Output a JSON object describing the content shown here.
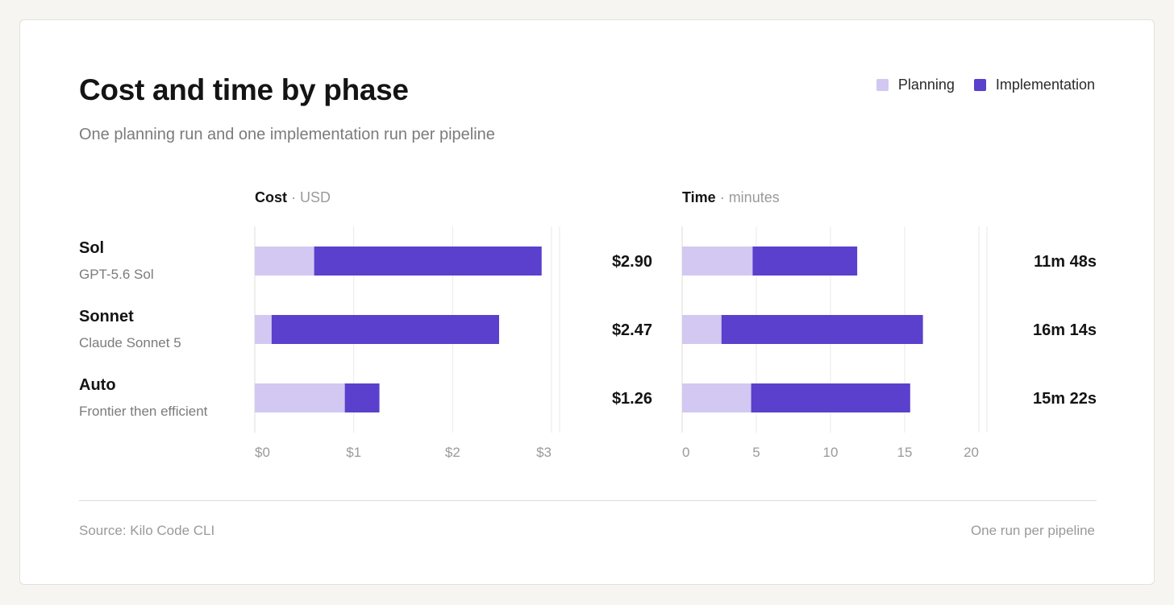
{
  "title": "Cost and time by phase",
  "subtitle": "One planning run and one implementation run per pipeline",
  "legend": [
    {
      "label": "Planning",
      "color": "#d2c8f2"
    },
    {
      "label": "Implementation",
      "color": "#5a40cc"
    }
  ],
  "panels": {
    "cost": {
      "title": "Cost",
      "unit": "USD"
    },
    "time": {
      "title": "Time",
      "unit": "minutes"
    }
  },
  "rows": [
    {
      "name": "Sol",
      "model": "GPT-5.6 Sol"
    },
    {
      "name": "Sonnet",
      "model": "Claude Sonnet 5"
    },
    {
      "name": "Auto",
      "model": "Frontier then efficient"
    }
  ],
  "footer": {
    "source": "Source: Kilo Code CLI",
    "note": "One run per pipeline"
  },
  "chart_data": [
    {
      "type": "bar",
      "orientation": "horizontal",
      "stacked": true,
      "title": "Cost",
      "xlabel": "USD",
      "categories": [
        "Sol",
        "Sonnet",
        "Auto"
      ],
      "series": [
        {
          "name": "Planning",
          "values": [
            0.6,
            0.17,
            0.91
          ]
        },
        {
          "name": "Implementation",
          "values": [
            2.3,
            2.3,
            0.35
          ]
        }
      ],
      "totals": [
        2.9,
        2.47,
        1.26
      ],
      "total_labels": [
        "$2.90",
        "$2.47",
        "$1.26"
      ],
      "xlim": [
        0,
        3
      ],
      "ticks": [
        0,
        1,
        2,
        3
      ],
      "tick_labels": [
        "$0",
        "$1",
        "$2",
        "$3"
      ],
      "grid": true
    },
    {
      "type": "bar",
      "orientation": "horizontal",
      "stacked": true,
      "title": "Time",
      "xlabel": "minutes",
      "categories": [
        "Sol",
        "Sonnet",
        "Auto"
      ],
      "series": [
        {
          "name": "Planning",
          "values": [
            4.75,
            2.65,
            4.65
          ]
        },
        {
          "name": "Implementation",
          "values": [
            7.05,
            13.58,
            10.72
          ]
        }
      ],
      "totals": [
        11.8,
        16.23,
        15.37
      ],
      "total_labels": [
        "11m 48s",
        "16m 14s",
        "15m 22s"
      ],
      "xlim": [
        0,
        20
      ],
      "ticks": [
        0,
        5,
        10,
        15,
        20
      ],
      "tick_labels": [
        "0",
        "5",
        "10",
        "15",
        "20"
      ],
      "grid": true
    }
  ]
}
